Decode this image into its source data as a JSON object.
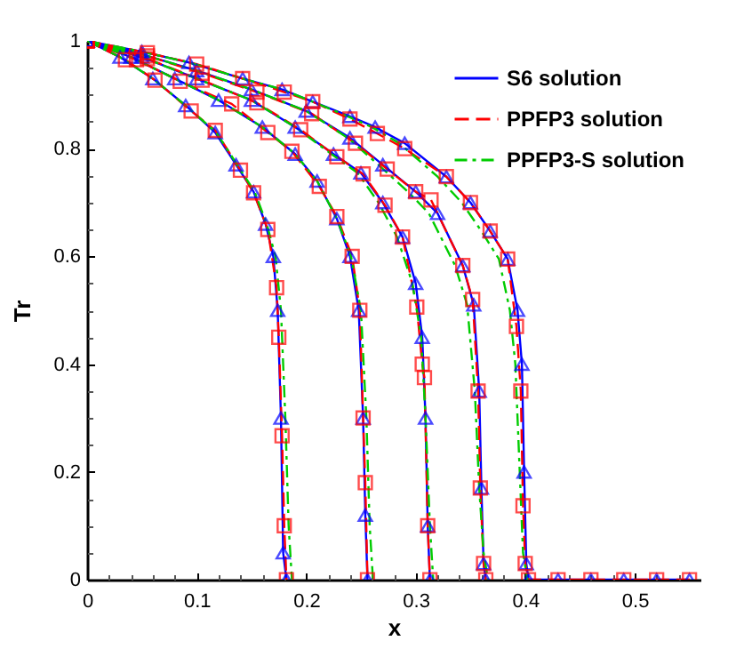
{
  "chart_data": {
    "type": "line",
    "xlabel": "x",
    "ylabel": "Tr",
    "legend": "top right",
    "xlim": [
      0,
      0.56
    ],
    "ylim": [
      0,
      1
    ],
    "xticks": [
      0,
      {
        "value": 0.02,
        "label": null
      },
      {
        "value": 0.04,
        "label": null
      },
      {
        "value": 0.06,
        "label": null
      },
      {
        "value": 0.08,
        "label": null
      },
      0.1,
      {
        "value": 0.12,
        "label": null
      },
      {
        "value": 0.14,
        "label": null
      },
      {
        "value": 0.16,
        "label": null
      },
      {
        "value": 0.18,
        "label": null
      },
      0.2,
      {
        "value": 0.22,
        "label": null
      },
      {
        "value": 0.24,
        "label": null
      },
      {
        "value": 0.26,
        "label": null
      },
      {
        "value": 0.28,
        "label": null
      },
      0.3,
      {
        "value": 0.32,
        "label": null
      },
      {
        "value": 0.34,
        "label": null
      },
      {
        "value": 0.36,
        "label": null
      },
      {
        "value": 0.38,
        "label": null
      },
      0.4,
      {
        "value": 0.42,
        "label": null
      },
      {
        "value": 0.44,
        "label": null
      },
      {
        "value": 0.46,
        "label": null
      },
      {
        "value": 0.48,
        "label": null
      },
      0.5,
      {
        "value": 0.52,
        "label": null
      },
      {
        "value": 0.54,
        "label": null
      }
    ],
    "yticks": [
      0,
      {
        "value": 0.05,
        "label": null
      },
      {
        "value": 0.1,
        "label": null
      },
      {
        "value": 0.15,
        "label": null
      },
      0.2,
      {
        "value": 0.25,
        "label": null
      },
      {
        "value": 0.3,
        "label": null
      },
      {
        "value": 0.35,
        "label": null
      },
      0.4,
      {
        "value": 0.45,
        "label": null
      },
      {
        "value": 0.5,
        "label": null
      },
      {
        "value": 0.55,
        "label": null
      },
      0.6,
      {
        "value": 0.65,
        "label": null
      },
      {
        "value": 0.7,
        "label": null
      },
      {
        "value": 0.75,
        "label": null
      },
      0.8,
      {
        "value": 0.85,
        "label": null
      },
      {
        "value": 0.9,
        "label": null
      },
      {
        "value": 0.95,
        "label": null
      },
      1
    ],
    "series": [
      {
        "name": "S6 solution",
        "color": "#0000ff",
        "marker": "triangle",
        "line_style": "solid",
        "x": [
          0,
          0.03,
          0.06,
          0.09,
          0.117,
          0.136,
          0.152,
          0.163,
          0.17,
          0.174,
          0.177,
          0.179,
          0.182,
          null,
          0,
          0.04,
          0.08,
          0.12,
          0.16,
          0.19,
          0.21,
          0.228,
          0.24,
          0.248,
          0.252,
          0.254,
          0.256,
          null,
          0,
          0.05,
          0.1,
          0.15,
          0.19,
          0.225,
          0.25,
          0.27,
          0.288,
          0.3,
          0.306,
          0.309,
          0.311,
          0.313,
          null,
          0,
          0.05,
          0.1,
          0.15,
          0.2,
          0.24,
          0.27,
          0.3,
          0.32,
          0.343,
          0.353,
          0.358,
          0.36,
          0.362,
          0.364,
          null,
          0,
          0.05,
          0.093,
          0.142,
          0.178,
          0.206,
          0.24,
          0.263,
          0.29,
          0.328,
          0.35,
          0.368,
          0.384,
          0.393,
          0.397,
          0.399,
          0.401,
          0.403,
          0.43,
          0.46,
          0.49,
          0.52,
          0.55
        ],
        "values": [
          1,
          0.97,
          0.93,
          0.88,
          0.83,
          0.77,
          0.72,
          0.66,
          0.6,
          0.5,
          0.3,
          0.05,
          0,
          null,
          1,
          0.97,
          0.93,
          0.89,
          0.84,
          0.79,
          0.74,
          0.67,
          0.6,
          0.5,
          0.3,
          0.12,
          0,
          null,
          1,
          0.97,
          0.93,
          0.89,
          0.84,
          0.79,
          0.755,
          0.7,
          0.636,
          0.55,
          0.45,
          0.3,
          0.1,
          0,
          null,
          1,
          0.975,
          0.945,
          0.91,
          0.87,
          0.82,
          0.77,
          0.72,
          0.68,
          0.583,
          0.51,
          0.35,
          0.17,
          0.03,
          0,
          null,
          1,
          0.98,
          0.96,
          0.93,
          0.91,
          0.887,
          0.86,
          0.84,
          0.81,
          0.748,
          0.7,
          0.647,
          0.595,
          0.5,
          0.4,
          0.2,
          0.03,
          0,
          0,
          0,
          0,
          0,
          0
        ]
      },
      {
        "name": "PPFP3 solution",
        "color": "#ff0000",
        "marker": "square",
        "line_style": "dashed",
        "x": [
          0,
          0.035,
          0.062,
          0.095,
          0.117,
          0.14,
          0.152,
          0.165,
          0.173,
          0.175,
          0.178,
          0.18,
          0.182,
          null,
          0,
          0.045,
          0.085,
          0.132,
          0.165,
          0.187,
          0.212,
          0.228,
          0.242,
          0.249,
          0.252,
          0.254,
          0.256,
          null,
          0,
          0.055,
          0.105,
          0.155,
          0.195,
          0.228,
          0.252,
          0.272,
          0.288,
          0.301,
          0.306,
          0.308,
          0.311,
          0.313,
          null,
          0,
          0.055,
          0.105,
          0.155,
          0.205,
          0.245,
          0.274,
          0.3,
          0.314,
          0.343,
          0.352,
          0.357,
          0.359,
          0.362,
          0.364,
          null,
          0,
          0.055,
          0.1,
          0.142,
          0.18,
          0.206,
          0.24,
          0.265,
          0.29,
          0.328,
          0.35,
          0.368,
          0.384,
          0.392,
          0.396,
          0.398,
          0.4,
          0.403,
          0.43,
          0.46,
          0.49,
          0.52,
          0.55
        ],
        "values": [
          1,
          0.965,
          0.927,
          0.87,
          0.834,
          0.76,
          0.718,
          0.65,
          0.542,
          0.45,
          0.267,
          0.1,
          0,
          null,
          1,
          0.965,
          0.925,
          0.883,
          0.83,
          0.795,
          0.73,
          0.674,
          0.6,
          0.5,
          0.3,
          0.18,
          0,
          null,
          1,
          0.967,
          0.927,
          0.885,
          0.835,
          0.785,
          0.753,
          0.695,
          0.636,
          0.506,
          0.4,
          0.375,
          0.1,
          0,
          null,
          1,
          0.972,
          0.94,
          0.905,
          0.865,
          0.81,
          0.762,
          0.72,
          0.705,
          0.583,
          0.52,
          0.35,
          0.17,
          0.03,
          0,
          null,
          1,
          0.978,
          0.957,
          0.93,
          0.905,
          0.887,
          0.855,
          0.828,
          0.8,
          0.748,
          0.7,
          0.647,
          0.595,
          0.47,
          0.35,
          0.137,
          0.03,
          0,
          0,
          0,
          0,
          0,
          0
        ]
      },
      {
        "name": "PPFP3-S solution",
        "color": "#00cc00",
        "marker": "none",
        "line_style": "dotted",
        "x": [
          0,
          0.03,
          0.06,
          0.09,
          0.118,
          0.137,
          0.153,
          0.164,
          0.172,
          0.177,
          0.181,
          0.184,
          0.187,
          null,
          0,
          0.04,
          0.08,
          0.12,
          0.16,
          0.19,
          0.21,
          0.228,
          0.241,
          0.25,
          0.255,
          0.258,
          0.261,
          null,
          0,
          0.05,
          0.1,
          0.15,
          0.19,
          0.223,
          0.247,
          0.266,
          0.283,
          0.297,
          0.305,
          0.309,
          0.313,
          0.316,
          null,
          0,
          0.05,
          0.1,
          0.15,
          0.2,
          0.238,
          0.266,
          0.293,
          0.312,
          0.336,
          0.347,
          0.354,
          0.358,
          0.362,
          0.366,
          null,
          0,
          0.05,
          0.093,
          0.142,
          0.178,
          0.206,
          0.238,
          0.26,
          0.285,
          0.32,
          0.342,
          0.36,
          0.376,
          0.386,
          0.391,
          0.395,
          0.398,
          0.402
        ],
        "values": [
          1,
          0.97,
          0.93,
          0.88,
          0.83,
          0.77,
          0.72,
          0.66,
          0.6,
          0.5,
          0.3,
          0.1,
          0,
          null,
          1,
          0.97,
          0.93,
          0.89,
          0.84,
          0.79,
          0.74,
          0.67,
          0.6,
          0.5,
          0.3,
          0.1,
          0,
          null,
          1,
          0.97,
          0.93,
          0.89,
          0.84,
          0.79,
          0.755,
          0.7,
          0.636,
          0.55,
          0.45,
          0.3,
          0.1,
          0,
          null,
          1,
          0.975,
          0.945,
          0.91,
          0.87,
          0.82,
          0.77,
          0.72,
          0.68,
          0.583,
          0.51,
          0.35,
          0.17,
          0.05,
          0,
          null,
          1,
          0.98,
          0.96,
          0.93,
          0.91,
          0.887,
          0.86,
          0.84,
          0.81,
          0.748,
          0.7,
          0.647,
          0.595,
          0.5,
          0.4,
          0.2,
          0.05,
          0
        ]
      }
    ]
  }
}
